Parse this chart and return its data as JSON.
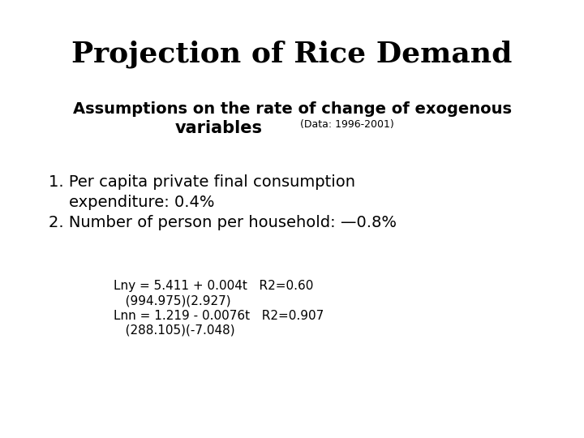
{
  "title": "Projection of Rice Demand",
  "subtitle_line1": "Assumptions on the rate of change of exogenous",
  "subtitle_line2": "variables",
  "subtitle_data": "(Data: 1996-2001)",
  "item1_line1": "1. Per capita private final consumption",
  "item1_line2": "    expenditure: 0.4%",
  "item2": "2. Number of person per household: —0.8%",
  "eq1_line1": "Lny = 5.411 + 0.004t   R2=0.60",
  "eq1_line2": "   (994.975)(2.927)",
  "eq2_line1": "Lnn = 1.219 - 0.0076t   R2=0.907",
  "eq2_line2": "   (288.105)(-7.048)",
  "bg_color": "#ffffff",
  "text_color": "#000000",
  "title_fontsize": 26,
  "subtitle_fontsize": 14,
  "body_fontsize": 14,
  "eq_fontsize": 11
}
